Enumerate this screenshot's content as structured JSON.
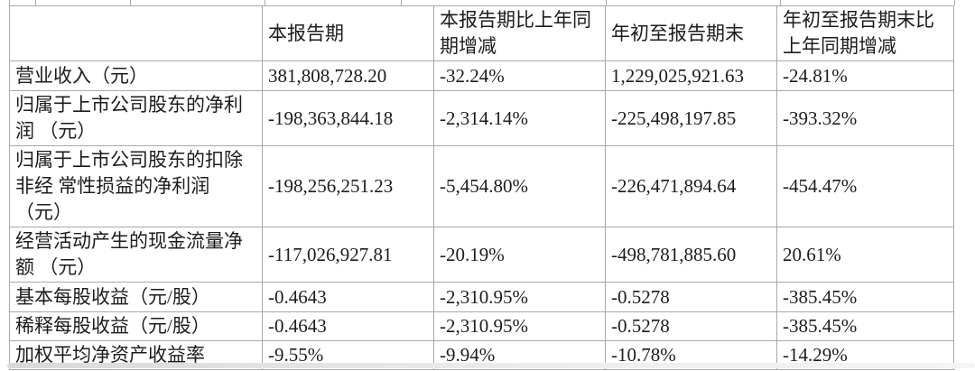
{
  "table": {
    "header": [
      "",
      "本报告期",
      "本报告期比上年同\n期增减",
      "年初至报告期末",
      "年初至报告期末比\n上年同期增减"
    ],
    "rows": [
      {
        "label": "营业收入（元）",
        "values": [
          "381,808,728.20",
          "-32.24%",
          "1,229,025,921.63",
          "-24.81%"
        ]
      },
      {
        "label": "归属于上市公司股东的净利\n润 （元）",
        "values": [
          "-198,363,844.18",
          "-2,314.14%",
          "-225,498,197.85",
          "-393.32%"
        ]
      },
      {
        "label": "归属于上市公司股东的扣除\n非经 常性损益的净利润\n（元）",
        "values": [
          "-198,256,251.23",
          "-5,454.80%",
          "-226,471,894.64",
          "-454.47%"
        ]
      },
      {
        "label": "经营活动产生的现金流量净\n额 （元）",
        "values": [
          "-117,026,927.81",
          "-20.19%",
          "-498,781,885.60",
          "20.61%"
        ]
      },
      {
        "label": "基本每股收益（元/股）",
        "values": [
          "-0.4643",
          "-2,310.95%",
          "-0.5278",
          "-385.45%"
        ]
      },
      {
        "label": "稀释每股收益（元/股）",
        "values": [
          "-0.4643",
          "-2,310.95%",
          "-0.5278",
          "-385.45%"
        ]
      },
      {
        "label": "加权平均净资产收益率",
        "values": [
          "-9.55%",
          "-9.94%",
          "-10.78%",
          "-14.29%"
        ]
      }
    ]
  },
  "colors": {
    "border": "#a9a9a9",
    "text": "#1c1c1c",
    "bottom_strip": "#d9d9d9"
  }
}
